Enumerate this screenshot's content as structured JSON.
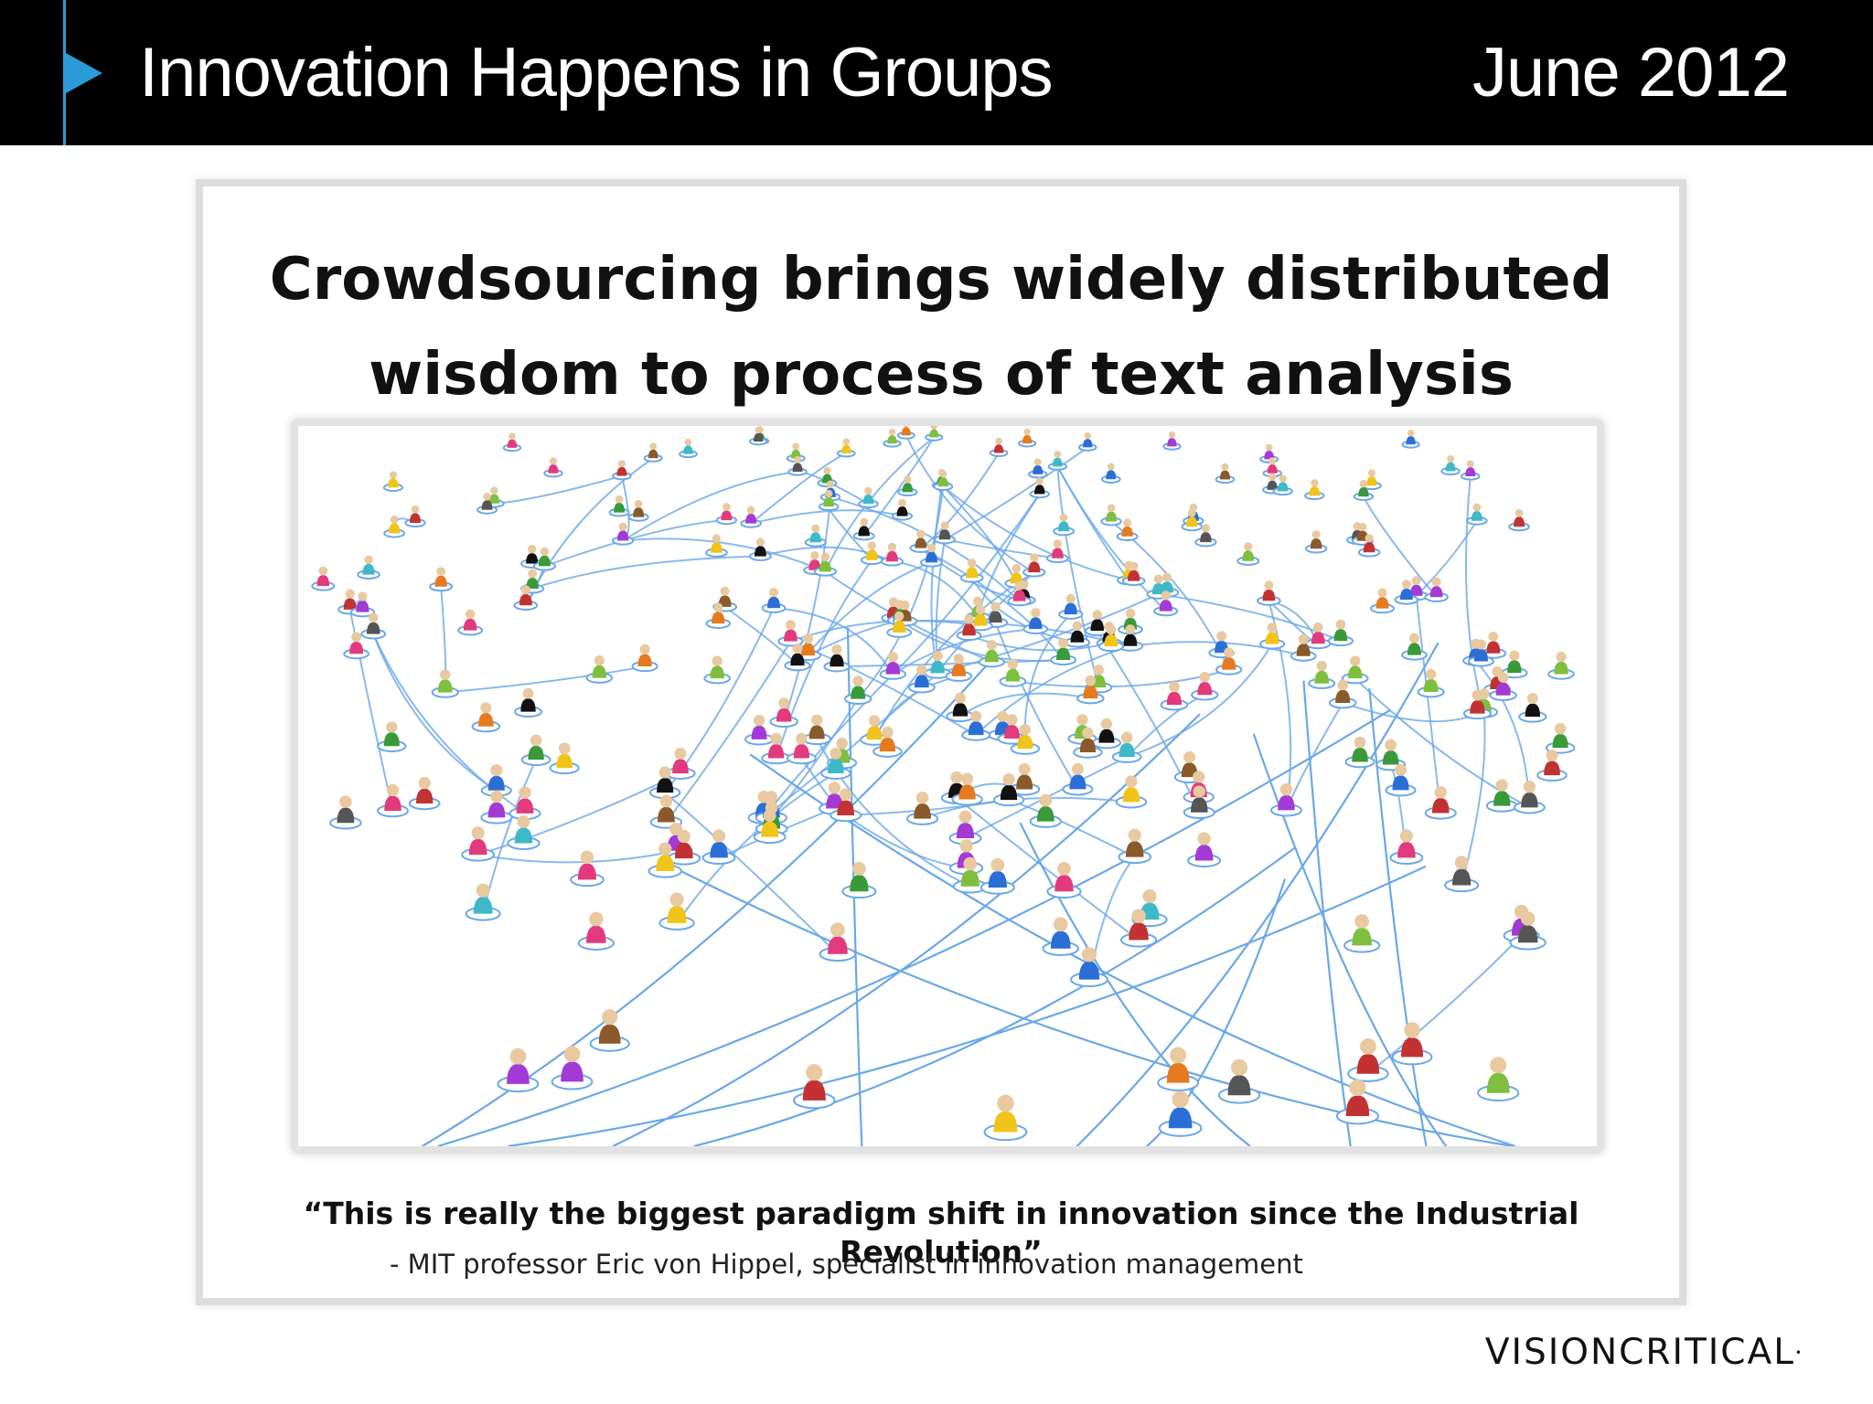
{
  "header": {
    "title": "Innovation Happens in Groups",
    "date": "June 2012"
  },
  "slide": {
    "headline_line1": "Crowdsourcing brings widely distributed",
    "headline_line2": "wisdom to process of text analysis",
    "quote": "“This is really the biggest paradigm shift in innovation since the Industrial Revolution”",
    "attribution": "- MIT professor Eric von Hippel, specialist in innovation management"
  },
  "footer": {
    "logo": "VISIONCRITICAL"
  },
  "colors": {
    "header_bg": "#000000",
    "accent": "#2a9bd6",
    "network_line": "#6aa8e8"
  }
}
